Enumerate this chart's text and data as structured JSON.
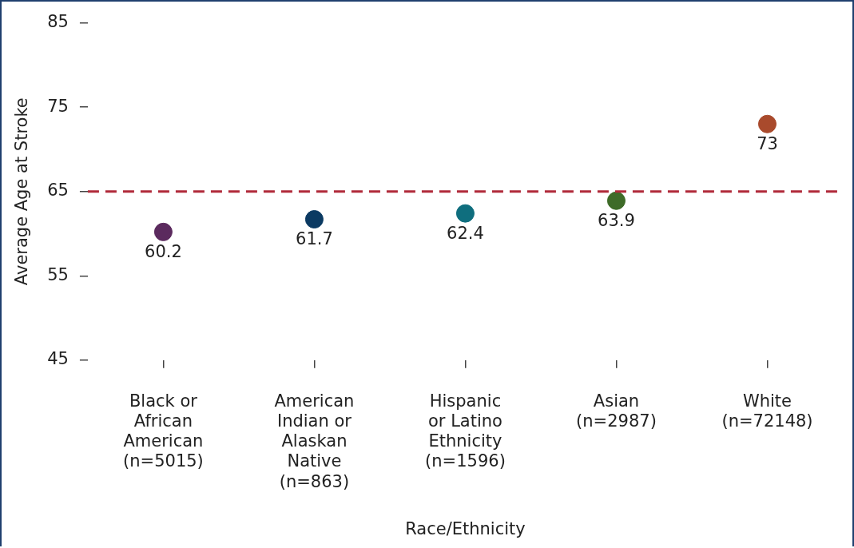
{
  "chart_data": {
    "type": "scatter",
    "xlabel": "Race/Ethnicity",
    "ylabel": "Average Age at Stroke",
    "categories": [
      "Black or African American (n=5015)",
      "American Indian or Alaskan Native (n=863)",
      "Hispanic or Latino Ethnicity (n=1596)",
      "Asian (n=2987)",
      "White (n=72148)"
    ],
    "values": [
      60.2,
      61.7,
      62.4,
      63.9,
      73
    ],
    "colors": [
      "#5b2a5e",
      "#0b3a62",
      "#0f6e7e",
      "#3e6b28",
      "#a94a2c"
    ],
    "ylim": [
      45,
      85
    ],
    "yticks": [
      45,
      55,
      65,
      75,
      85
    ],
    "ref_lines": [
      {
        "axis": "y",
        "value": 65,
        "color": "#b02a3a",
        "line_style": "dashed"
      }
    ],
    "marker": "circle",
    "data_labels": true,
    "grid": false,
    "legend": false
  }
}
